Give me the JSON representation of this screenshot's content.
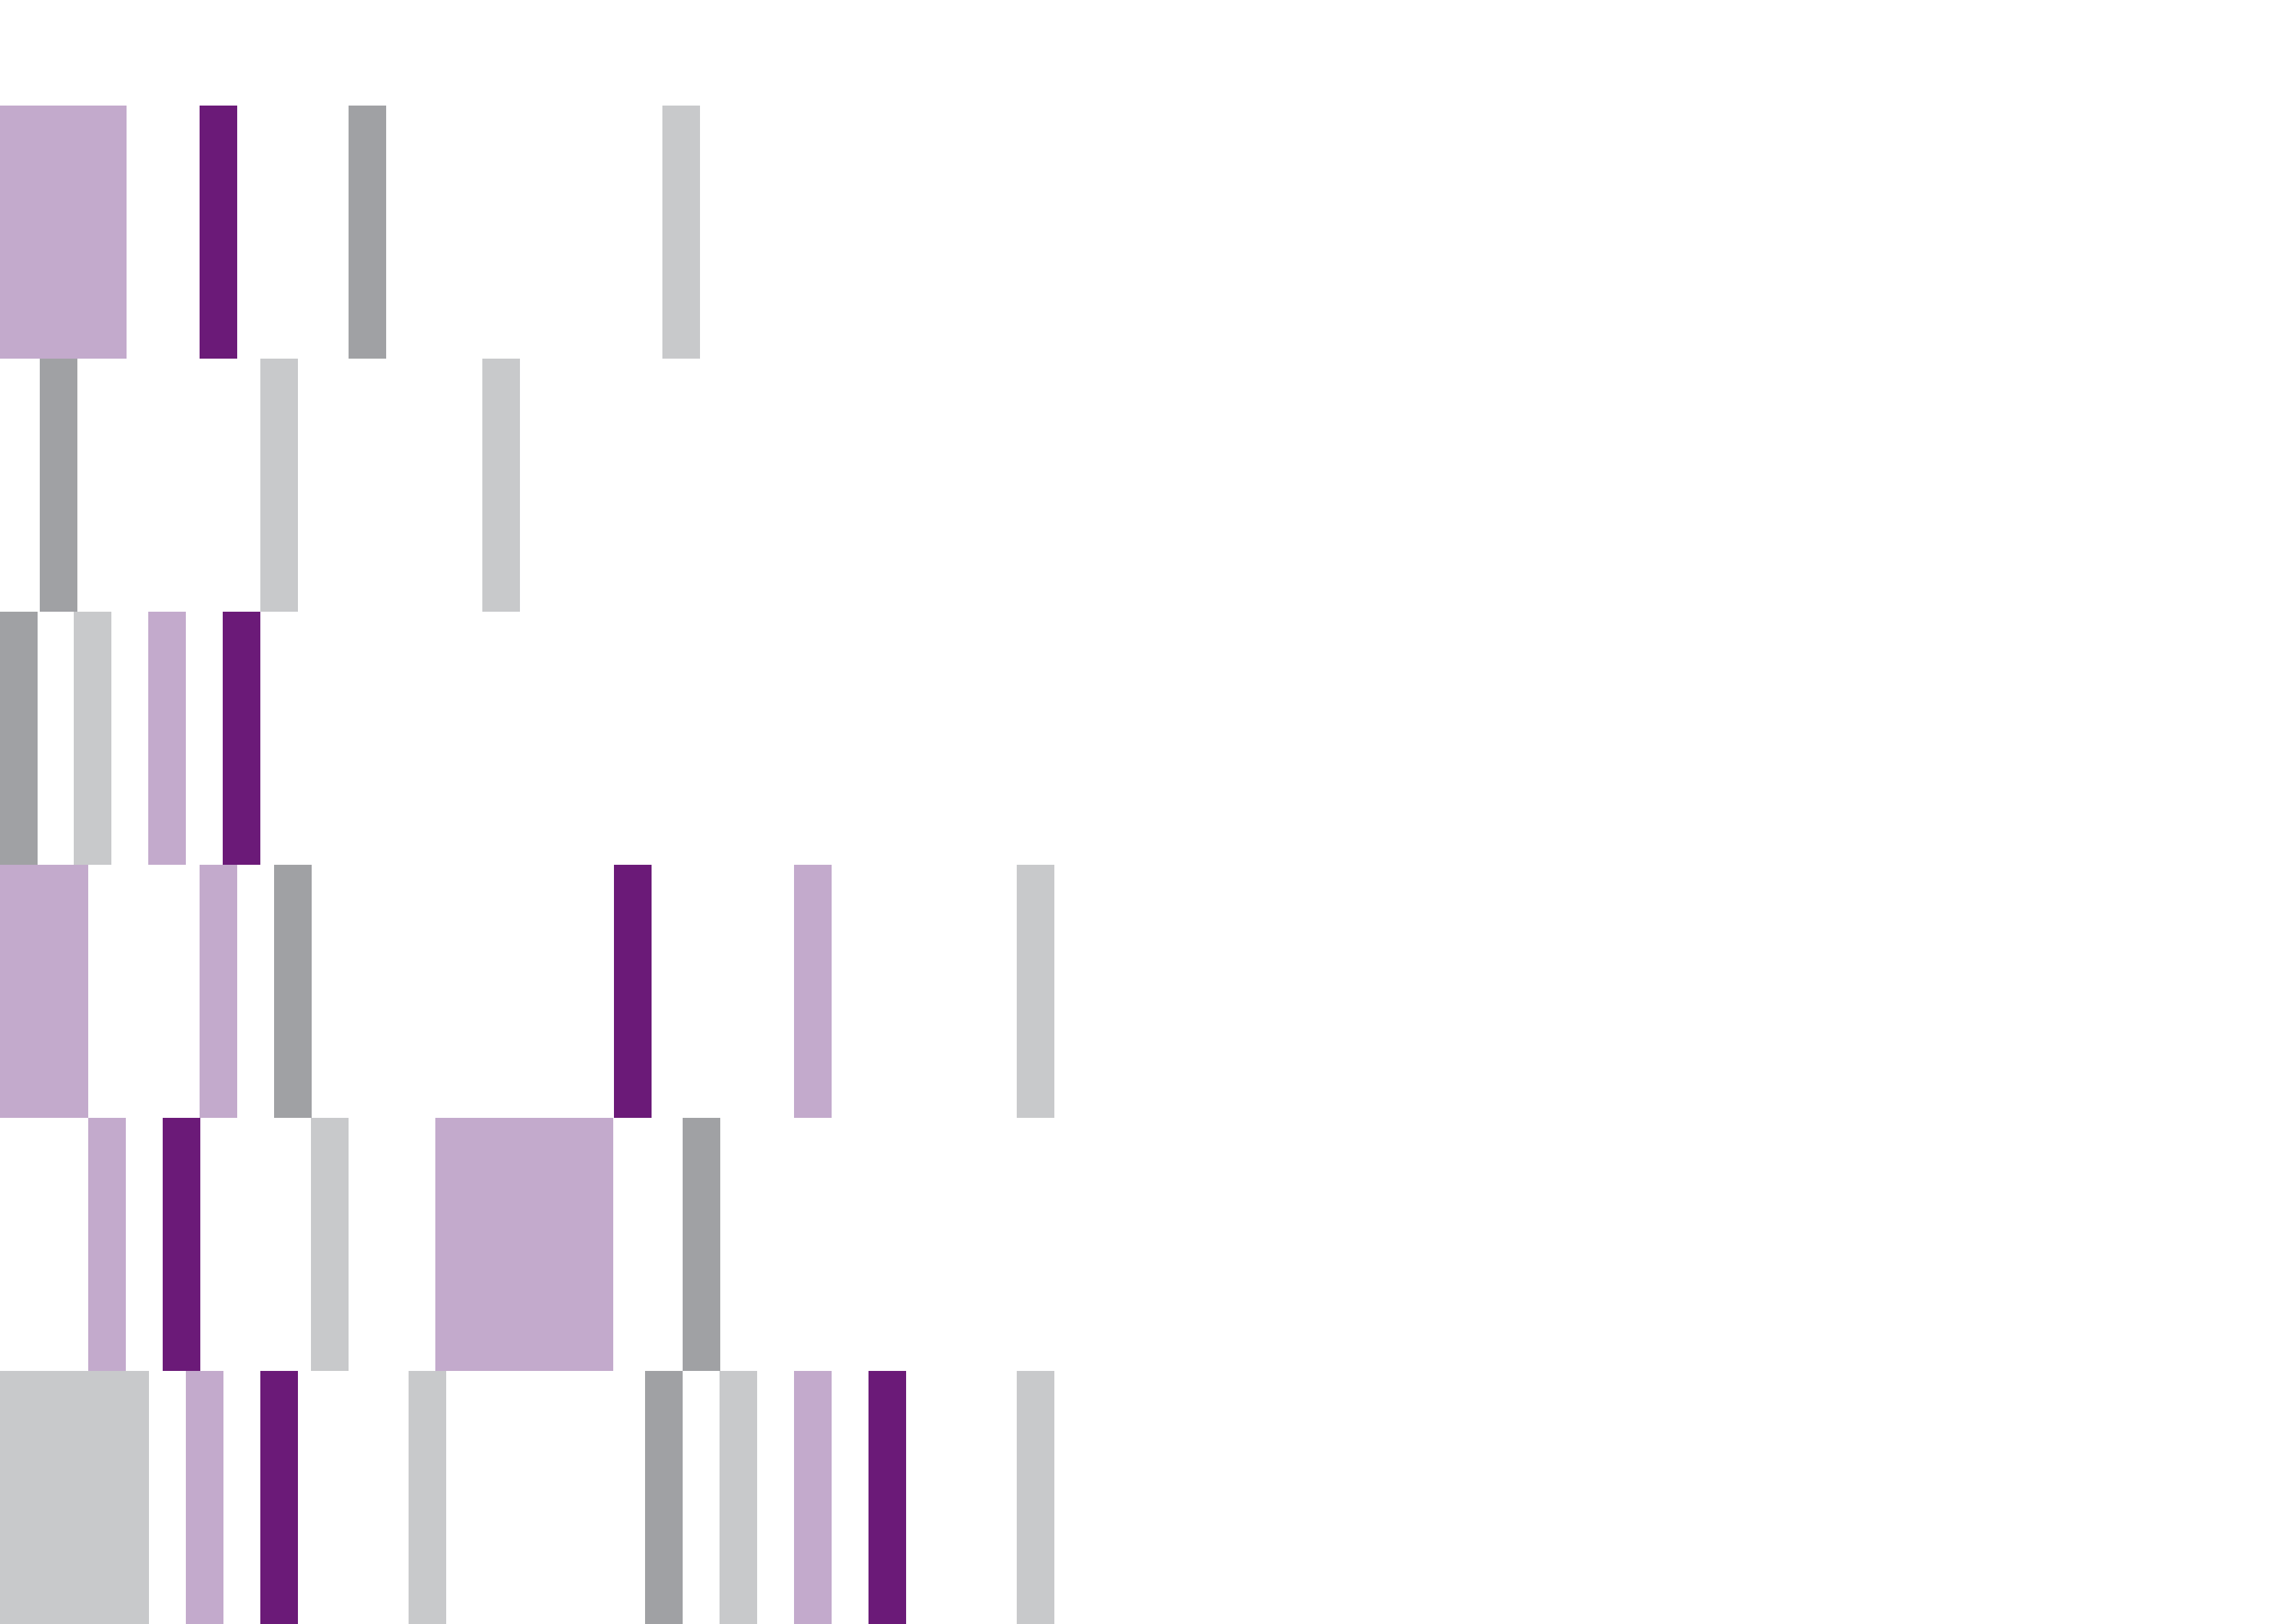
{
  "palette": {
    "light-purple": "#C3AACC",
    "dark-purple": "#6B1A78",
    "dark-gray": "#A0A1A4",
    "light-gray": "#C8C9CB"
  },
  "rows": [
    {
      "name": "row-1",
      "blocks": [
        {
          "color": "light-purple"
        },
        {
          "color": "dark-purple"
        },
        {
          "color": "dark-gray"
        },
        {
          "color": "light-gray"
        }
      ]
    },
    {
      "name": "row-2",
      "blocks": [
        {
          "color": "dark-gray"
        },
        {
          "color": "light-gray"
        },
        {
          "color": "light-gray"
        }
      ]
    },
    {
      "name": "row-3",
      "blocks": [
        {
          "color": "dark-gray"
        },
        {
          "color": "light-gray"
        },
        {
          "color": "light-purple"
        },
        {
          "color": "dark-purple"
        }
      ]
    },
    {
      "name": "row-4",
      "blocks": [
        {
          "color": "light-purple"
        },
        {
          "color": "light-purple"
        },
        {
          "color": "dark-gray"
        },
        {
          "color": "dark-purple"
        },
        {
          "color": "light-purple"
        },
        {
          "color": "light-gray"
        }
      ]
    },
    {
      "name": "row-5",
      "blocks": [
        {
          "color": "light-purple"
        },
        {
          "color": "dark-purple"
        },
        {
          "color": "light-gray"
        },
        {
          "color": "light-purple"
        },
        {
          "color": "dark-gray"
        }
      ]
    },
    {
      "name": "row-6",
      "blocks": [
        {
          "color": "light-gray"
        },
        {
          "color": "light-purple"
        },
        {
          "color": "dark-purple"
        },
        {
          "color": "light-gray"
        },
        {
          "color": "dark-gray"
        },
        {
          "color": "light-gray"
        },
        {
          "color": "light-purple"
        },
        {
          "color": "dark-purple"
        },
        {
          "color": "light-gray"
        }
      ]
    }
  ]
}
